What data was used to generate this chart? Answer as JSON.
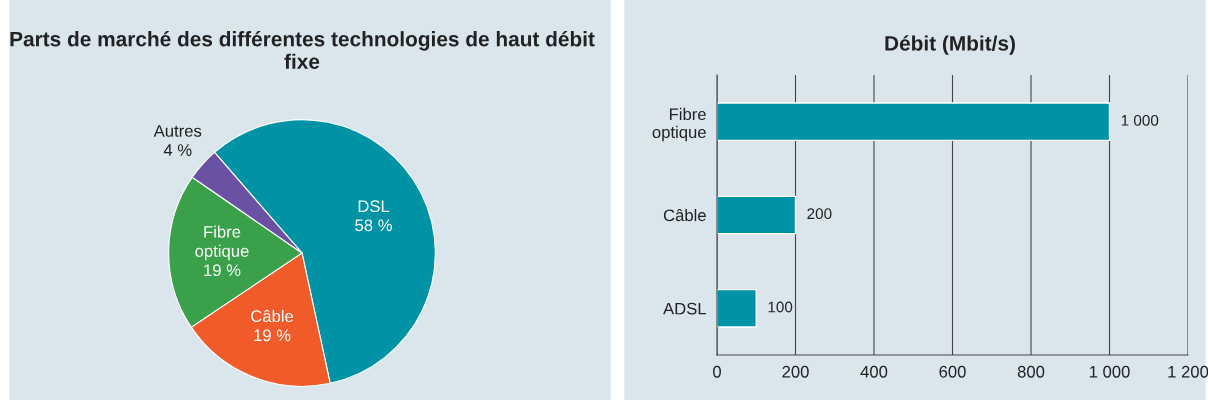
{
  "chart_data": [
    {
      "type": "pie",
      "title": "Parts de marché des différentes technologies de haut débit fixe",
      "categories": [
        "DSL",
        "Câble",
        "Fibre optique",
        "Autres"
      ],
      "values": [
        58,
        19,
        19,
        4
      ],
      "value_labels": [
        "58 %",
        "19 %",
        "19 %",
        "4 %"
      ],
      "colors": [
        "#0093a5",
        "#f15a29",
        "#3aa14a",
        "#6b51a3"
      ]
    },
    {
      "type": "bar",
      "orientation": "horizontal",
      "title": "Débit (Mbit/s)",
      "categories": [
        "Fibre optique",
        "Câble",
        "ADSL"
      ],
      "values": [
        1000,
        200,
        100
      ],
      "color": "#0093a5",
      "value_labels": [
        "1 000",
        "200",
        "100"
      ],
      "xlim": [
        0,
        1200
      ],
      "xticks": [
        0,
        200,
        400,
        600,
        800,
        {
          "value": 1000,
          "label": "1 000"
        },
        {
          "value": 1200,
          "label": "1 200"
        }
      ],
      "grid": "x"
    }
  ]
}
